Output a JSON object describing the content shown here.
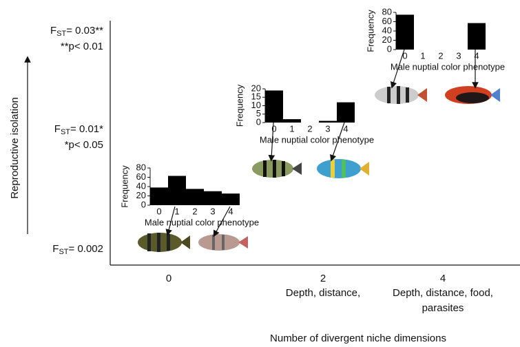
{
  "figure": {
    "y_axis_label": "Reproductive isolation",
    "x_axis_label": "Number of divergent niche dimensions",
    "fst_levels": [
      {
        "symbol": "F",
        "subscript": "ST",
        "value": "= 0.03**",
        "note": "**p< 0.01"
      },
      {
        "symbol": "F",
        "subscript": "ST",
        "value": "= 0.01*",
        "note": "*p< 0.05"
      },
      {
        "symbol": "F",
        "subscript": "ST",
        "value": "= 0.002",
        "note": null
      }
    ],
    "xticks": [
      0,
      2,
      4
    ],
    "x_descriptions": [
      null,
      [
        "Depth, distance,"
      ],
      [
        "Depth, distance, food,",
        "parasites"
      ]
    ]
  },
  "chart_data": [
    {
      "type": "bar",
      "categories": [
        "0",
        "1",
        "2",
        "3",
        "4"
      ],
      "values": [
        38,
        63,
        35,
        30,
        25
      ],
      "ylim": [
        0,
        80
      ],
      "yticks": [
        0,
        20,
        40,
        60,
        80
      ],
      "y_label": "Frequency",
      "x_label": "Male nuptial color phenotype",
      "color": "#000000"
    },
    {
      "type": "bar",
      "categories": [
        "0",
        "1",
        "2",
        "3",
        "4"
      ],
      "values": [
        19,
        2,
        0,
        1,
        12
      ],
      "ylim": [
        0,
        20
      ],
      "yticks": [
        0,
        5,
        10,
        15,
        20
      ],
      "y_label": "Frequency",
      "x_label": "Male nuptial color phenotype",
      "color": "#000000"
    },
    {
      "type": "bar",
      "categories": [
        "0",
        "1",
        "2",
        "3",
        "4"
      ],
      "values": [
        75,
        0,
        0,
        0,
        57
      ],
      "ylim": [
        0,
        80
      ],
      "yticks": [
        0,
        20,
        40,
        60,
        80
      ],
      "y_label": "Frequency",
      "x_label": "Male nuptial color phenotype",
      "color": "#000000"
    }
  ]
}
